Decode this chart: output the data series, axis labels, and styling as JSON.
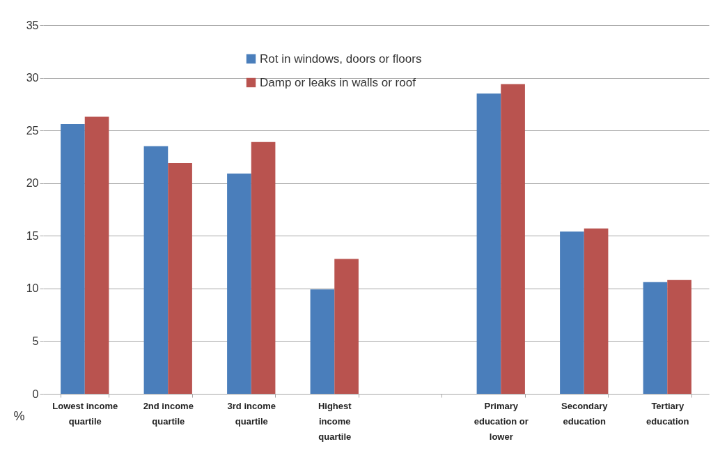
{
  "chart_data": {
    "type": "bar",
    "ylabel": "%",
    "categories": [
      "Lowest income quartile",
      "2nd income quartile",
      "3rd income quartile",
      "Highest income quartile",
      null,
      "Primary education or lower",
      "Secondary education",
      "Tertiary education"
    ],
    "series": [
      {
        "name": "Rot in windows, doors or floors",
        "color": "#4a7ebb",
        "values": [
          25.6,
          23.5,
          20.9,
          9.9,
          null,
          28.5,
          15.4,
          10.6
        ]
      },
      {
        "name": "Damp or leaks in walls or roof",
        "color": "#b9534f",
        "values": [
          26.3,
          21.9,
          23.9,
          12.8,
          null,
          29.4,
          15.7,
          10.8
        ]
      }
    ],
    "ylim": [
      0,
      35
    ],
    "yticks": [
      0,
      5,
      10,
      15,
      20,
      25,
      30,
      35
    ],
    "grid": "y",
    "legend": "top"
  }
}
